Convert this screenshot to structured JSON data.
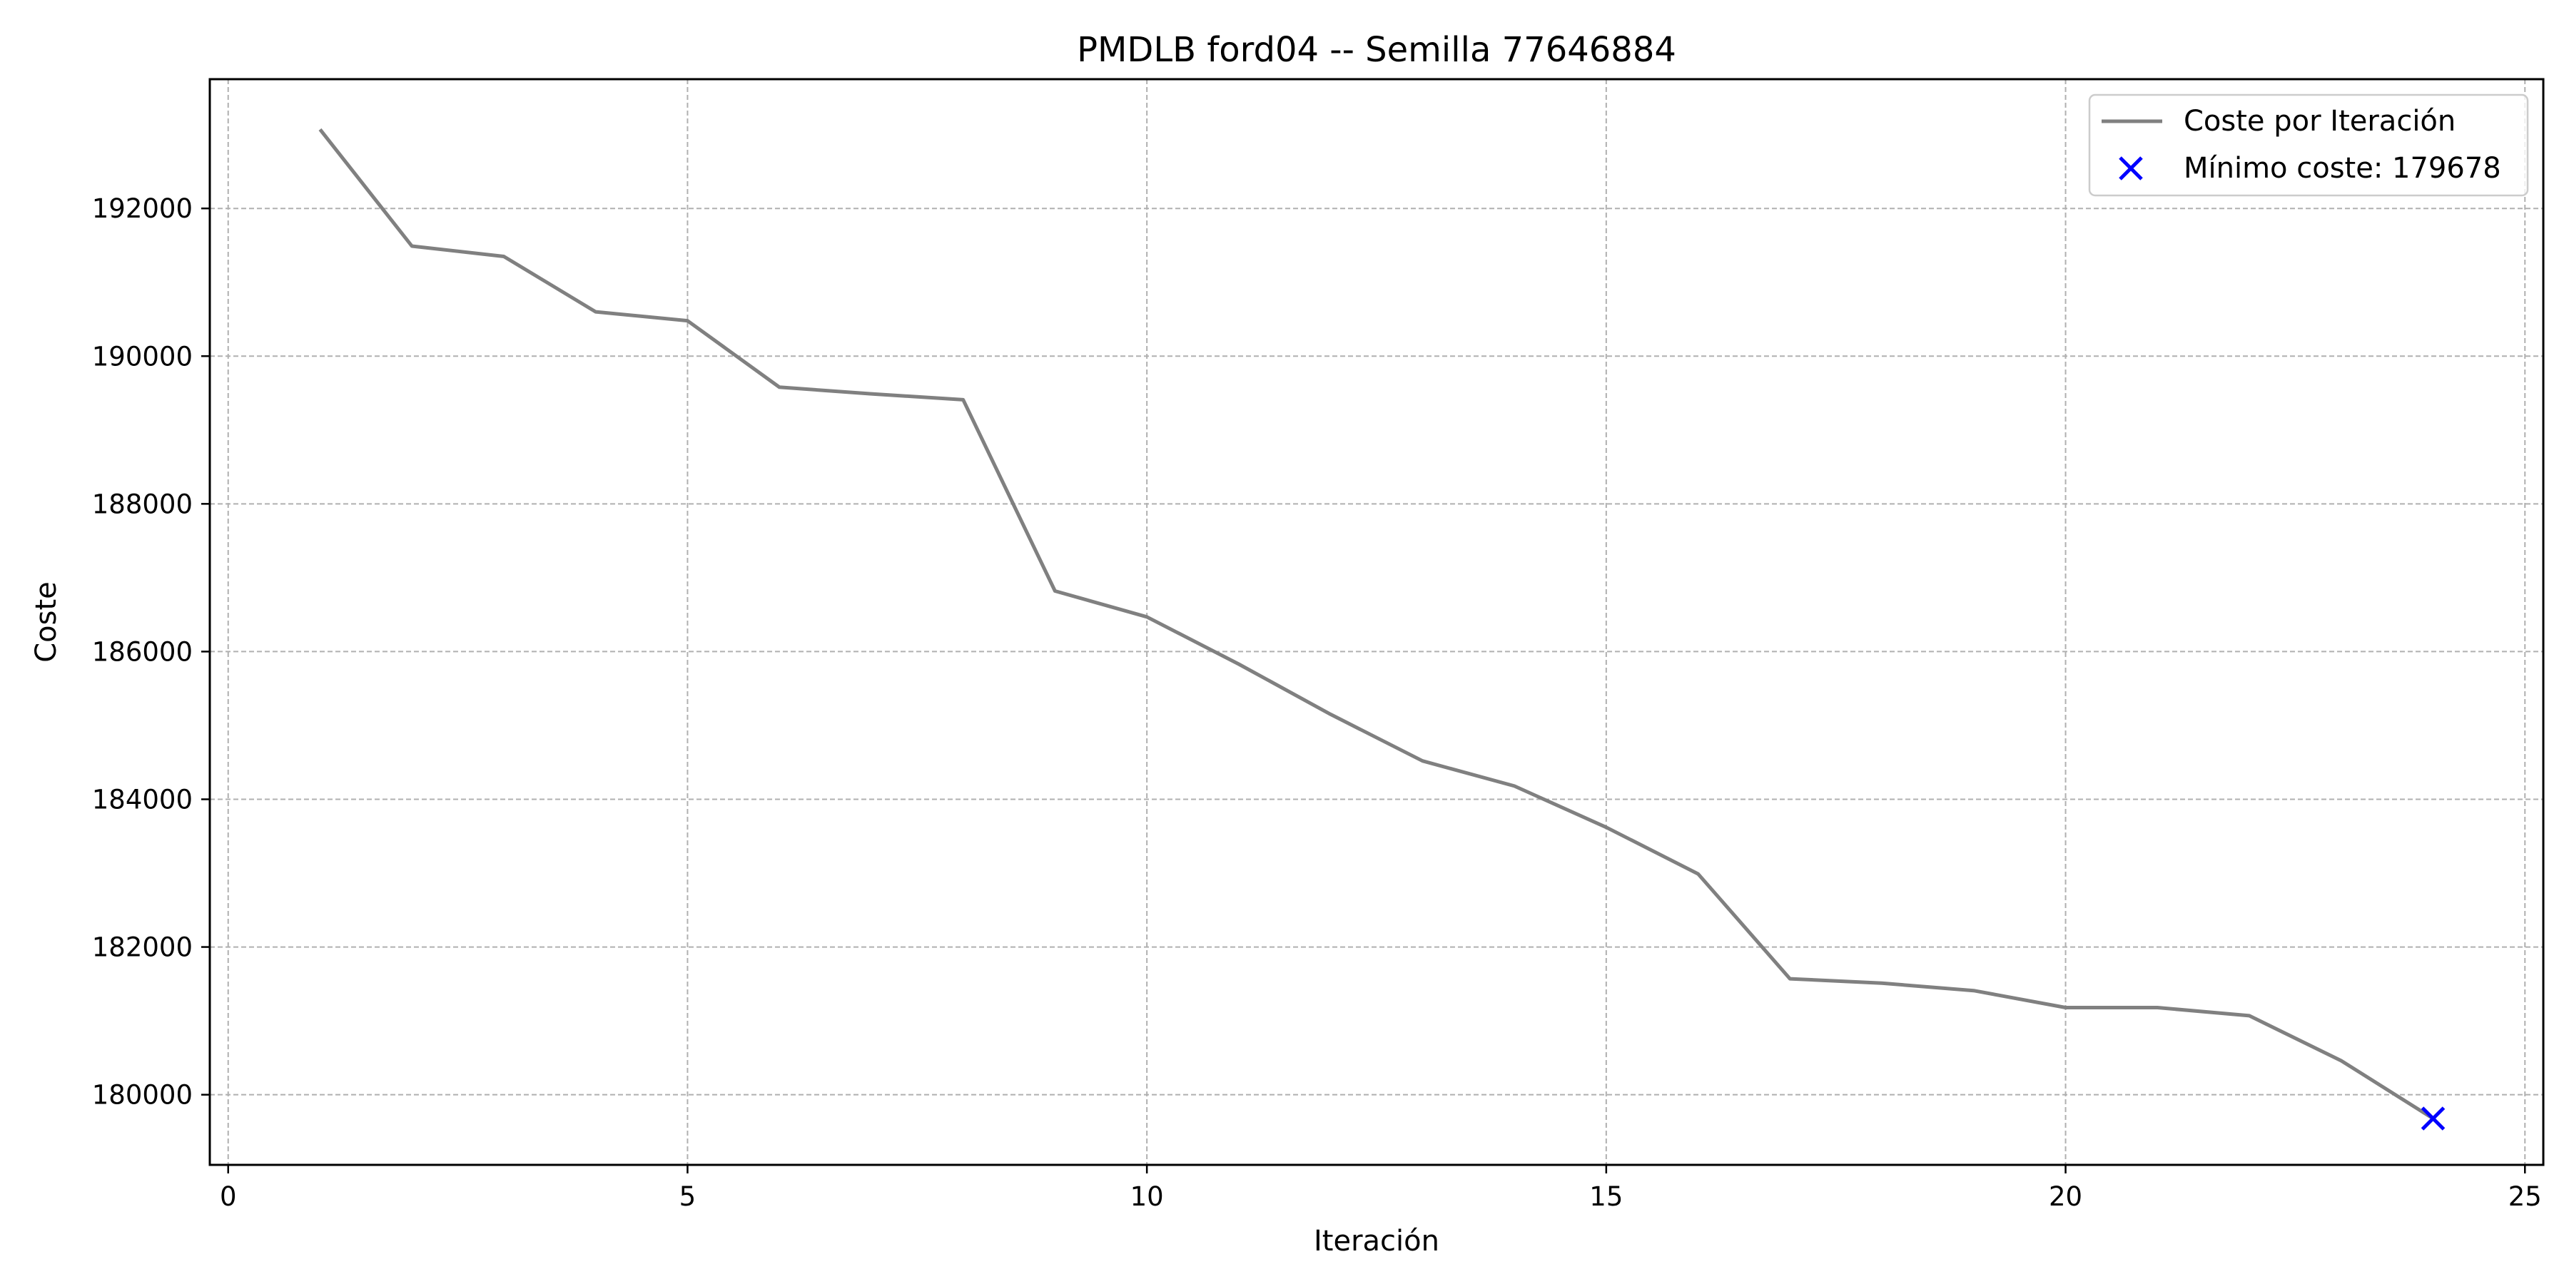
{
  "chart_data": {
    "type": "line",
    "title": "PMDLB ford04 -- Semilla 77646884",
    "xlabel": "Iteración",
    "ylabel": "Coste",
    "xlim": [
      -0.2,
      25.2
    ],
    "ylim": [
      179050,
      193750
    ],
    "xticks": [
      0,
      5,
      10,
      15,
      20,
      25
    ],
    "yticks": [
      180000,
      182000,
      184000,
      186000,
      188000,
      190000,
      192000
    ],
    "grid": true,
    "legend_position": "top-right",
    "series": [
      {
        "name": "Coste por Iteración",
        "color": "#808080",
        "x": [
          1,
          2,
          3,
          4,
          5,
          6,
          7,
          8,
          9,
          10,
          11,
          12,
          13,
          14,
          15,
          16,
          17,
          18,
          19,
          20,
          21,
          22,
          23,
          24
        ],
        "y": [
          193070,
          191490,
          191350,
          190600,
          190480,
          189580,
          189490,
          189410,
          186820,
          186470,
          185830,
          185150,
          184520,
          184180,
          183620,
          182990,
          181570,
          181510,
          181410,
          181180,
          181180,
          181070,
          180460,
          179678
        ]
      }
    ],
    "minimum": {
      "name": "Mínimo coste: 179678",
      "x": 24,
      "y": 179678,
      "color": "#0000ff",
      "marker": "x"
    }
  }
}
